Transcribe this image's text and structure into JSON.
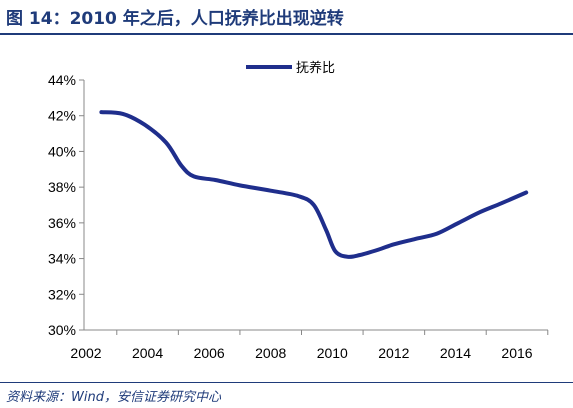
{
  "title": "图 14：2010 年之后，人口抚养比出现逆转",
  "source": "资料来源：Wind，安信证券研究中心",
  "chart_data": {
    "type": "line",
    "title": "",
    "xlabel": "",
    "ylabel": "",
    "xlim": [
      2002,
      2016
    ],
    "ylim": [
      30,
      44
    ],
    "x_ticks": [
      "2002",
      "2004",
      "2006",
      "2008",
      "2010",
      "2012",
      "2014",
      "2016"
    ],
    "y_ticks": [
      "30%",
      "32%",
      "34%",
      "36%",
      "38%",
      "40%",
      "42%",
      "44%"
    ],
    "grid": false,
    "legend": "top-center",
    "series": [
      {
        "name": "抚养比",
        "color": "#1f2e8c",
        "x": [
          2002.5,
          2003.2,
          2003.9,
          2004.6,
          2005.1,
          2005.5,
          2006.2,
          2007.0,
          2008.0,
          2008.9,
          2009.4,
          2009.8,
          2010.1,
          2010.5,
          2010.9,
          2011.5,
          2012.0,
          2012.7,
          2013.4,
          2014.1,
          2014.8,
          2015.5,
          2016.3
        ],
        "values": [
          42.2,
          42.1,
          41.5,
          40.5,
          39.2,
          38.6,
          38.4,
          38.1,
          37.8,
          37.5,
          37.0,
          35.6,
          34.4,
          34.1,
          34.2,
          34.5,
          34.8,
          35.1,
          35.4,
          36.0,
          36.6,
          37.1,
          37.7
        ]
      }
    ]
  }
}
